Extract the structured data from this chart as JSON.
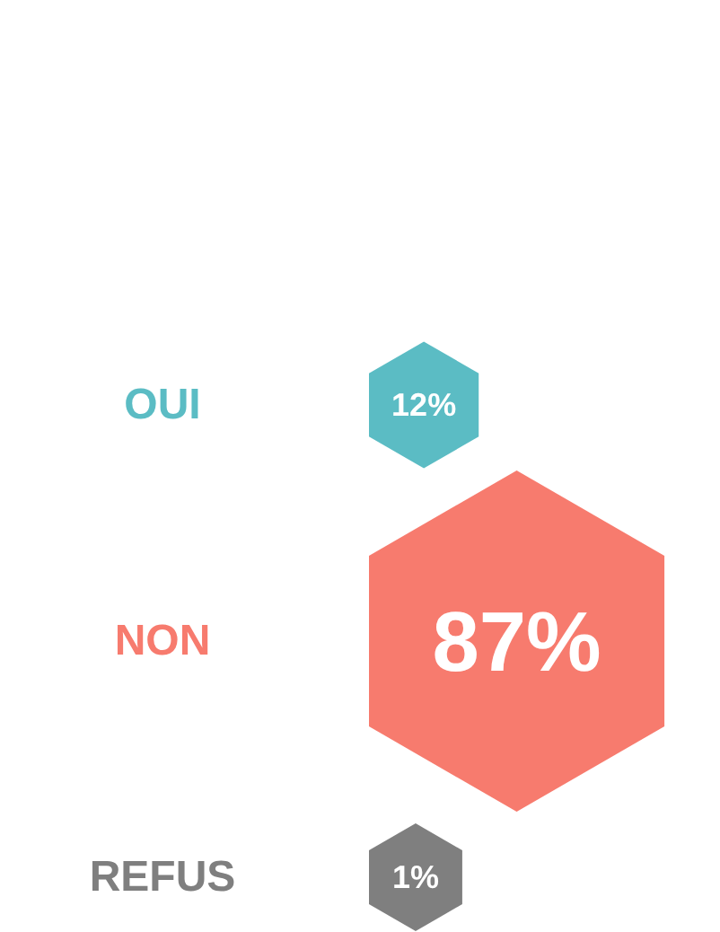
{
  "chart_data": {
    "type": "other",
    "categories": [
      "OUI",
      "NON",
      "REFUS"
    ],
    "values": [
      12,
      87,
      1
    ],
    "value_labels": [
      "12%",
      "87%",
      "1%"
    ],
    "colors": [
      "#5bbcc4",
      "#f77b6e",
      "#7f7f7f"
    ]
  }
}
